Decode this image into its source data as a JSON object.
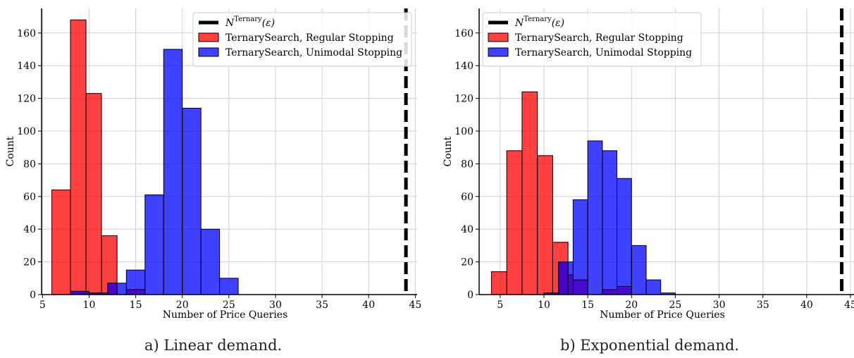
{
  "colors": {
    "regular": "#ff0000",
    "unimodal": "#0000ff",
    "threshold": "#000000",
    "grid": "#cfcfcf"
  },
  "legend_labels": {
    "threshold_base": "N",
    "threshold_sup": "Ternary",
    "threshold_arg": "(ε)",
    "regular": "TernarySearch, Regular Stopping",
    "unimodal": "TernarySearch, Unimodal Stopping"
  },
  "chart_data": [
    {
      "type": "bar",
      "xlabel": "Number of Price Queries",
      "ylabel": "Count",
      "caption": "a) Linear demand.",
      "xlim": [
        4.9,
        45.2
      ],
      "ylim": [
        0,
        175
      ],
      "xticks": [
        5,
        10,
        15,
        20,
        25,
        30,
        35,
        40,
        45
      ],
      "yticks": [
        0,
        20,
        40,
        60,
        80,
        100,
        120,
        140,
        160
      ],
      "grid": true,
      "legend_position": "top-right",
      "threshold_x": 44,
      "series": [
        {
          "key": "regular",
          "bins": [
            {
              "x0": 6,
              "x1": 8,
              "count": 64
            },
            {
              "x0": 8,
              "x1": 9.67,
              "count": 168
            },
            {
              "x0": 9.67,
              "x1": 11.33,
              "count": 123
            },
            {
              "x0": 11.33,
              "x1": 13,
              "count": 36
            }
          ]
        },
        {
          "key": "unimodal",
          "bins": [
            {
              "x0": 8,
              "x1": 10,
              "count": 2
            },
            {
              "x0": 10,
              "x1": 12,
              "count": 1
            },
            {
              "x0": 12,
              "x1": 14,
              "count": 7
            },
            {
              "x0": 14,
              "x1": 16,
              "count": 15
            },
            {
              "x0": 16,
              "x1": 18,
              "count": 61
            },
            {
              "x0": 18,
              "x1": 20,
              "count": 150
            },
            {
              "x0": 20,
              "x1": 22,
              "count": 114
            },
            {
              "x0": 22,
              "x1": 24,
              "count": 40
            },
            {
              "x0": 24,
              "x1": 26,
              "count": 10
            }
          ]
        }
      ],
      "overlap": [
        {
          "x0": 8,
          "x1": 9.67,
          "count": 2
        },
        {
          "x0": 10,
          "x1": 11.33,
          "count": 1
        },
        {
          "x0": 12,
          "x1": 13,
          "count": 7
        },
        {
          "x0": 14,
          "x1": 16,
          "count": 3
        }
      ]
    },
    {
      "type": "bar",
      "xlabel": "Number of Price Queries",
      "ylabel": "Count",
      "caption": "b) Exponential demand.",
      "xlim": [
        2.6,
        45.4
      ],
      "ylim": [
        0,
        175
      ],
      "xticks": [
        5,
        10,
        15,
        20,
        25,
        30,
        35,
        40,
        45
      ],
      "yticks": [
        0,
        20,
        40,
        60,
        80,
        100,
        120,
        140,
        160
      ],
      "grid": true,
      "legend_position": "top-left",
      "threshold_x": 44,
      "series": [
        {
          "key": "regular",
          "bins": [
            {
              "x0": 4,
              "x1": 5.75,
              "count": 14
            },
            {
              "x0": 5.75,
              "x1": 7.5,
              "count": 88
            },
            {
              "x0": 7.5,
              "x1": 9.25,
              "count": 124
            },
            {
              "x0": 9.25,
              "x1": 11,
              "count": 85
            },
            {
              "x0": 11,
              "x1": 12.75,
              "count": 32
            }
          ]
        },
        {
          "key": "unimodal",
          "bins": [
            {
              "x0": 10,
              "x1": 11.67,
              "count": 1
            },
            {
              "x0": 11.67,
              "x1": 13.33,
              "count": 20
            },
            {
              "x0": 13.33,
              "x1": 15,
              "count": 58
            },
            {
              "x0": 15,
              "x1": 16.67,
              "count": 94
            },
            {
              "x0": 16.67,
              "x1": 18.33,
              "count": 88
            },
            {
              "x0": 18.33,
              "x1": 20,
              "count": 71
            },
            {
              "x0": 20,
              "x1": 21.67,
              "count": 30
            },
            {
              "x0": 21.67,
              "x1": 23.33,
              "count": 9
            },
            {
              "x0": 23.33,
              "x1": 25,
              "count": 1
            }
          ]
        }
      ],
      "overlap": [
        {
          "x0": 11.67,
          "x1": 12.75,
          "count": 20
        },
        {
          "x0": 12.75,
          "x1": 13.33,
          "count": 12
        },
        {
          "x0": 13.33,
          "x1": 15,
          "count": 9
        },
        {
          "x0": 16.67,
          "x1": 18.33,
          "count": 3
        },
        {
          "x0": 18.33,
          "x1": 20,
          "count": 5
        }
      ]
    }
  ]
}
